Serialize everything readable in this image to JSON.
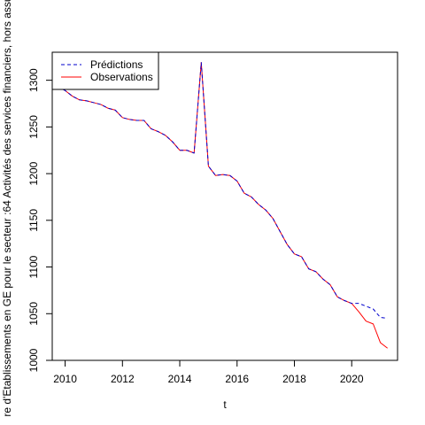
{
  "chart_data": {
    "type": "line",
    "title": "",
    "xlabel": "t",
    "ylabel": "re d'Etablissements en GE pour le secteur :64 Activités des services financiers, hors assu",
    "xlim": [
      2009.55,
      2021.6
    ],
    "ylim": [
      1000,
      1330
    ],
    "xticks": [
      2010,
      2012,
      2014,
      2016,
      2018,
      2020
    ],
    "yticks": [
      1000,
      1050,
      1100,
      1150,
      1200,
      1250,
      1300
    ],
    "legend": {
      "position": "top-left"
    },
    "series": [
      {
        "name": "Prédictions",
        "color": "#0000cd",
        "dash": "dashed",
        "x": [
          2009.75,
          2010.0,
          2010.25,
          2010.5,
          2010.75,
          2011.0,
          2011.25,
          2011.5,
          2011.75,
          2012.0,
          2012.25,
          2012.5,
          2012.75,
          2013.0,
          2013.25,
          2013.5,
          2013.75,
          2014.0,
          2014.25,
          2014.5,
          2014.75,
          2015.0,
          2015.25,
          2015.5,
          2015.75,
          2016.0,
          2016.25,
          2016.5,
          2016.75,
          2017.0,
          2017.25,
          2017.5,
          2017.75,
          2018.0,
          2018.25,
          2018.5,
          2018.75,
          2019.0,
          2019.25,
          2019.5,
          2019.75,
          2020.0,
          2020.25,
          2020.5,
          2020.75,
          2021.0,
          2021.25
        ],
        "values": [
          1293,
          1289,
          1283,
          1279,
          1278,
          1276,
          1274,
          1270,
          1268,
          1260,
          1258,
          1257,
          1257,
          1248,
          1245,
          1241,
          1234,
          1225,
          1225,
          1222,
          1319,
          1208,
          1198,
          1199,
          1198,
          1192,
          1179,
          1175,
          1167,
          1161,
          1152,
          1138,
          1124,
          1114,
          1111,
          1098,
          1095,
          1087,
          1081,
          1068,
          1064,
          1061,
          1061,
          1058,
          1055,
          1046,
          1045
        ]
      },
      {
        "name": "Observations",
        "color": "#ff0000",
        "dash": "solid",
        "x": [
          2009.75,
          2010.0,
          2010.25,
          2010.5,
          2010.75,
          2011.0,
          2011.25,
          2011.5,
          2011.75,
          2012.0,
          2012.25,
          2012.5,
          2012.75,
          2013.0,
          2013.25,
          2013.5,
          2013.75,
          2014.0,
          2014.25,
          2014.5,
          2014.75,
          2015.0,
          2015.25,
          2015.5,
          2015.75,
          2016.0,
          2016.25,
          2016.5,
          2016.75,
          2017.0,
          2017.25,
          2017.5,
          2017.75,
          2018.0,
          2018.25,
          2018.5,
          2018.75,
          2019.0,
          2019.25,
          2019.5,
          2019.75,
          2020.0,
          2020.25,
          2020.5,
          2020.75,
          2021.0,
          2021.25
        ],
        "values": [
          1293,
          1289,
          1283,
          1279,
          1278,
          1276,
          1274,
          1270,
          1268,
          1260,
          1258,
          1257,
          1257,
          1248,
          1245,
          1241,
          1234,
          1225,
          1225,
          1222,
          1319,
          1208,
          1198,
          1199,
          1198,
          1192,
          1179,
          1175,
          1167,
          1161,
          1152,
          1138,
          1124,
          1114,
          1111,
          1098,
          1095,
          1087,
          1081,
          1068,
          1064,
          1061,
          1052,
          1042,
          1039,
          1019,
          1013
        ]
      }
    ]
  }
}
